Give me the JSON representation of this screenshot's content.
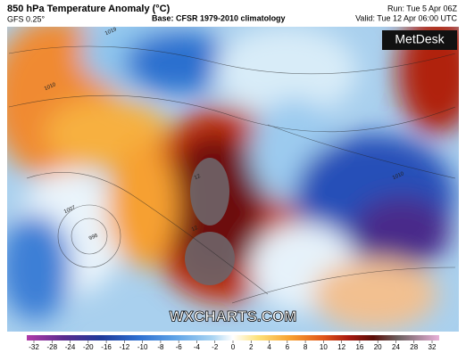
{
  "header": {
    "title": "850 hPa Temperature Anomaly (°C)",
    "model": "GFS 0.25°",
    "base": "Base: CFSR 1979-2010 climatology",
    "run": "Run: Tue 5 Apr 06Z",
    "valid": "Valid: Tue 12 Apr 06:00 UTC"
  },
  "map": {
    "brand": "MetDesk",
    "watermark": "WXCHARTS.COM",
    "contour_labels": [
      "1019",
      "1010",
      "1007",
      "998",
      "12",
      "12",
      "1010"
    ]
  },
  "colorbar": {
    "ticks": [
      -32,
      -28,
      -24,
      -20,
      -16,
      -12,
      -10,
      -8,
      -6,
      -4,
      -2,
      0,
      2,
      4,
      6,
      8,
      10,
      12,
      16,
      20,
      24,
      28,
      32
    ]
  }
}
